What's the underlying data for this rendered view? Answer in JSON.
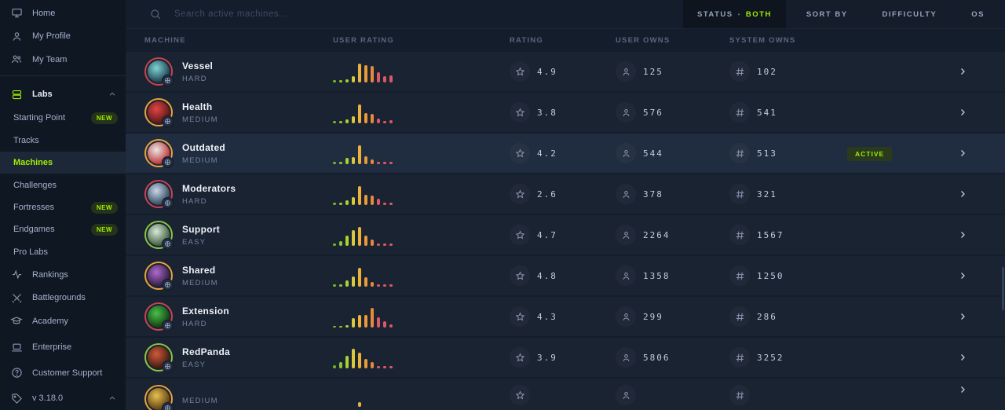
{
  "sidebar": {
    "items": [
      {
        "label": "Home",
        "icon": "monitor-icon"
      },
      {
        "label": "My Profile",
        "icon": "user-icon"
      },
      {
        "label": "My Team",
        "icon": "users-icon"
      },
      {
        "label": "Labs",
        "icon": "stack-icon",
        "expanded": true
      },
      {
        "label": "Starting Point",
        "badge": "NEW"
      },
      {
        "label": "Tracks"
      },
      {
        "label": "Machines",
        "selected": true
      },
      {
        "label": "Challenges"
      },
      {
        "label": "Fortresses",
        "badge": "NEW"
      },
      {
        "label": "Endgames",
        "badge": "NEW"
      },
      {
        "label": "Pro Labs"
      },
      {
        "label": "Rankings",
        "icon": "pulse-icon"
      },
      {
        "label": "Battlegrounds",
        "icon": "swords-icon"
      },
      {
        "label": "Academy",
        "icon": "graduation-cap-icon"
      },
      {
        "label": "Enterprise",
        "icon": "laptop-icon"
      },
      {
        "label": "Customer Support",
        "icon": "help-circle-icon"
      },
      {
        "label": "v 3.18.0",
        "icon": "tag-icon",
        "expanded": true
      }
    ]
  },
  "topbar": {
    "search_placeholder": "Search active machines...",
    "filters": [
      {
        "label": "STATUS",
        "separator": "•",
        "value": "BOTH"
      },
      {
        "label": "SORT BY"
      },
      {
        "label": "DIFFICULTY"
      },
      {
        "label": "OS"
      }
    ]
  },
  "table": {
    "headers": [
      "MACHINE",
      "USER RATING",
      "RATING",
      "USER OWNS",
      "SYSTEM OWNS"
    ],
    "rows": [
      {
        "name": "Vessel",
        "difficulty": "HARD",
        "rating": "4.9",
        "user_owns": "125",
        "system_owns": "102",
        "histogram": [
          3,
          3,
          4,
          8,
          24,
          22,
          21,
          13,
          8,
          9
        ],
        "avatar_colors": [
          "#7fd4d4",
          "#1a3a4a"
        ]
      },
      {
        "name": "Health",
        "difficulty": "MEDIUM",
        "rating": "3.8",
        "user_owns": "576",
        "system_owns": "541",
        "histogram": [
          3,
          3,
          5,
          9,
          24,
          13,
          12,
          6,
          3,
          4
        ],
        "avatar_colors": [
          "#e04545",
          "#5a1515"
        ]
      },
      {
        "name": "Outdated",
        "difficulty": "MEDIUM",
        "rating": "4.2",
        "user_owns": "544",
        "system_owns": "513",
        "status": "ACTIVE",
        "highlight": true,
        "histogram": [
          3,
          3,
          8,
          9,
          24,
          10,
          6,
          3,
          3,
          3
        ],
        "avatar_colors": [
          "#e8e8e8",
          "#c03030"
        ]
      },
      {
        "name": "Moderators",
        "difficulty": "HARD",
        "rating": "2.6",
        "user_owns": "378",
        "system_owns": "321",
        "histogram": [
          3,
          3,
          6,
          10,
          24,
          13,
          12,
          8,
          3,
          3
        ],
        "avatar_colors": [
          "#c8d8e8",
          "#30435a"
        ]
      },
      {
        "name": "Support",
        "difficulty": "EASY",
        "rating": "4.7",
        "user_owns": "2264",
        "system_owns": "1567",
        "histogram": [
          3,
          6,
          13,
          20,
          24,
          13,
          8,
          3,
          3,
          3
        ],
        "avatar_colors": [
          "#d8e8d8",
          "#3a5a3a"
        ]
      },
      {
        "name": "Shared",
        "difficulty": "MEDIUM",
        "rating": "4.8",
        "user_owns": "1358",
        "system_owns": "1250",
        "histogram": [
          3,
          3,
          8,
          13,
          24,
          12,
          6,
          3,
          3,
          3
        ],
        "avatar_colors": [
          "#b06ad0",
          "#2a1a3a"
        ]
      },
      {
        "name": "Extension",
        "difficulty": "HARD",
        "rating": "4.3",
        "user_owns": "299",
        "system_owns": "286",
        "histogram": [
          2,
          2,
          3,
          12,
          16,
          16,
          25,
          13,
          8,
          4
        ],
        "avatar_colors": [
          "#4ac04a",
          "#103a10"
        ]
      },
      {
        "name": "RedPanda",
        "difficulty": "EASY",
        "rating": "3.9",
        "user_owns": "5806",
        "system_owns": "3252",
        "histogram": [
          4,
          8,
          16,
          25,
          20,
          12,
          8,
          3,
          3,
          3
        ],
        "avatar_colors": [
          "#d05a3a",
          "#3a1a10"
        ]
      }
    ],
    "partial_row": {
      "difficulty": "MEDIUM",
      "avatar_colors": [
        "#e8c050",
        "#5a3a10"
      ],
      "histogram": [
        0,
        0,
        0,
        0,
        6,
        0,
        0,
        0,
        0,
        0
      ]
    }
  },
  "colors": {
    "accent_green": "#9fef00",
    "difficulty": {
      "EASY": "#8bc53f",
      "MEDIUM": "#e8a33d",
      "HARD": "#c84353"
    },
    "histogram_palette": [
      "#74b32a",
      "#8cc832",
      "#a8d432",
      "#d9c83a",
      "#eab23c",
      "#ea9a3c",
      "#e8883a",
      "#dd5866",
      "#dd5866",
      "#dd5866"
    ]
  }
}
